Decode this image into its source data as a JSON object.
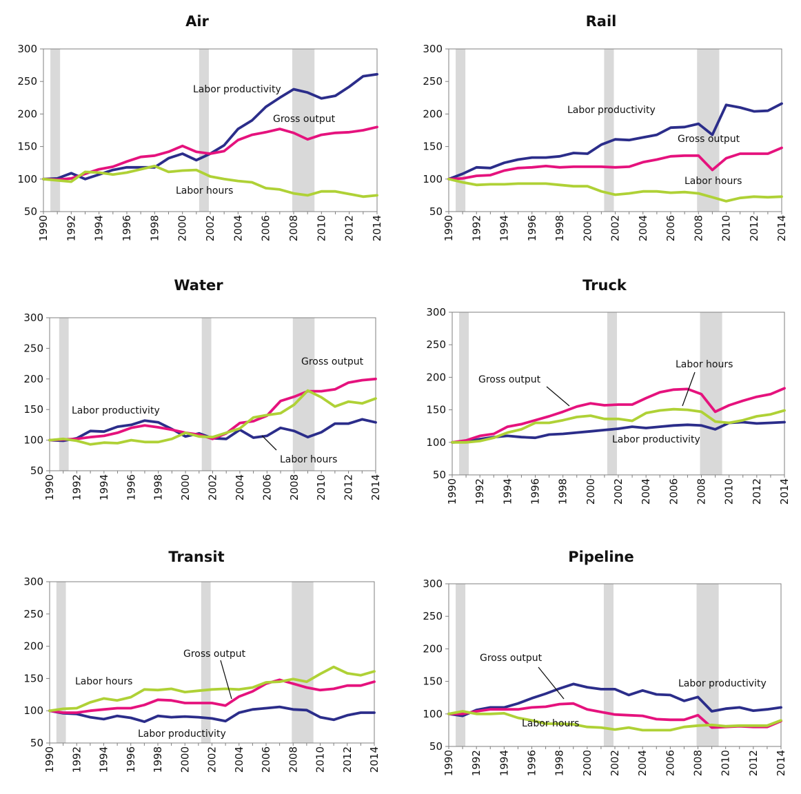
{
  "colors": {
    "Labor productivity": "#2b2d8a",
    "Gross output": "#e5127d",
    "Labor hours": "#afd136",
    "recession": "#d9d9d9",
    "axis": "#7f7f7f"
  },
  "chart_data": [
    {
      "type": "line",
      "title": "Air",
      "x": [
        1990,
        1991,
        1992,
        1993,
        1994,
        1995,
        1996,
        1997,
        1998,
        1999,
        2000,
        2001,
        2002,
        2003,
        2004,
        2005,
        2006,
        2007,
        2008,
        2009,
        2010,
        2011,
        2012,
        2013,
        2014
      ],
      "xticks": [
        "1990",
        "1992",
        "1994",
        "1996",
        "1998",
        "2000",
        "2002",
        "2004",
        "2006",
        "2008",
        "2010",
        "2012",
        "2014"
      ],
      "yticks": [
        "50",
        "100",
        "150",
        "200",
        "250",
        "300"
      ],
      "ylim": [
        50,
        300
      ],
      "shaded": [
        [
          1990.5,
          1991.2
        ],
        [
          2001.2,
          2001.9
        ],
        [
          2007.9,
          2009.5
        ]
      ],
      "series": [
        {
          "name": "Labor productivity",
          "values": [
            100,
            101,
            109,
            100,
            107,
            114,
            118,
            118,
            118,
            132,
            139,
            129,
            139,
            152,
            177,
            190,
            211,
            225,
            238,
            233,
            224,
            228,
            242,
            258,
            261
          ]
        },
        {
          "name": "Gross output",
          "values": [
            100,
            99,
            101,
            108,
            115,
            119,
            127,
            134,
            136,
            142,
            151,
            142,
            139,
            143,
            160,
            168,
            172,
            177,
            171,
            161,
            168,
            171,
            172,
            175,
            180
          ]
        },
        {
          "name": "Labor hours",
          "values": [
            100,
            98,
            96,
            111,
            110,
            107,
            110,
            115,
            120,
            111,
            113,
            114,
            104,
            100,
            97,
            95,
            86,
            84,
            78,
            75,
            81,
            81,
            77,
            73,
            75
          ]
        }
      ],
      "annotations": [
        "Labor productivity",
        "Gross output",
        "Labor hours"
      ]
    },
    {
      "type": "line",
      "title": "Rail",
      "x": [
        1990,
        1991,
        1992,
        1993,
        1994,
        1995,
        1996,
        1997,
        1998,
        1999,
        2000,
        2001,
        2002,
        2003,
        2004,
        2005,
        2006,
        2007,
        2008,
        2009,
        2010,
        2011,
        2012,
        2013,
        2014
      ],
      "xticks": [
        "1990",
        "1992",
        "1994",
        "1996",
        "1998",
        "2000",
        "2002",
        "2004",
        "2006",
        "2008",
        "2010",
        "2012",
        "2014"
      ],
      "yticks": [
        "50",
        "100",
        "150",
        "200",
        "250",
        "300"
      ],
      "ylim": [
        50,
        300
      ],
      "shaded": [
        [
          1990.5,
          1991.2
        ],
        [
          2001.2,
          2001.9
        ],
        [
          2007.9,
          2009.5
        ]
      ],
      "series": [
        {
          "name": "Labor productivity",
          "values": [
            100,
            108,
            118,
            117,
            125,
            130,
            133,
            133,
            135,
            140,
            139,
            153,
            161,
            160,
            164,
            168,
            179,
            180,
            185,
            168,
            214,
            210,
            204,
            205,
            216
          ]
        },
        {
          "name": "Gross output",
          "values": [
            100,
            101,
            105,
            106,
            113,
            117,
            118,
            120,
            118,
            119,
            119,
            119,
            118,
            119,
            126,
            130,
            135,
            136,
            136,
            114,
            132,
            139,
            139,
            139,
            148
          ]
        },
        {
          "name": "Labor hours",
          "values": [
            100,
            95,
            91,
            92,
            92,
            93,
            93,
            93,
            91,
            89,
            89,
            81,
            76,
            78,
            81,
            81,
            79,
            80,
            78,
            72,
            66,
            71,
            73,
            72,
            73
          ]
        }
      ],
      "annotations": [
        "Labor productivity",
        "Gross output",
        "Labor hours"
      ]
    },
    {
      "type": "line",
      "title": "Water",
      "x": [
        1990,
        1991,
        1992,
        1993,
        1994,
        1995,
        1996,
        1997,
        1998,
        1999,
        2000,
        2001,
        2002,
        2003,
        2004,
        2005,
        2006,
        2007,
        2008,
        2009,
        2010,
        2011,
        2012,
        2013,
        2014
      ],
      "xticks": [
        "1990",
        "1992",
        "1994",
        "1996",
        "1998",
        "2000",
        "2002",
        "2004",
        "2006",
        "2008",
        "2010",
        "2012",
        "2014"
      ],
      "yticks": [
        "50",
        "100",
        "150",
        "200",
        "250",
        "300"
      ],
      "ylim": [
        50,
        300
      ],
      "shaded": [
        [
          1990.7,
          1991.4
        ],
        [
          2001.2,
          2001.9
        ],
        [
          2007.9,
          2009.5
        ]
      ],
      "series": [
        {
          "name": "Labor productivity",
          "values": [
            100,
            99,
            103,
            115,
            114,
            122,
            125,
            132,
            129,
            118,
            106,
            111,
            103,
            102,
            117,
            104,
            107,
            120,
            115,
            105,
            113,
            127,
            127,
            134,
            129
          ]
        },
        {
          "name": "Gross output",
          "values": [
            100,
            101,
            102,
            105,
            107,
            112,
            120,
            124,
            121,
            117,
            112,
            109,
            102,
            111,
            128,
            131,
            140,
            164,
            171,
            180,
            180,
            183,
            194,
            198,
            200
          ]
        },
        {
          "name": "Labor hours",
          "values": [
            100,
            102,
            99,
            93,
            96,
            95,
            100,
            97,
            97,
            102,
            112,
            106,
            105,
            112,
            119,
            137,
            141,
            144,
            158,
            181,
            170,
            155,
            163,
            160,
            168
          ]
        }
      ],
      "annotations": [
        "Gross output",
        "Labor productivity",
        "Labor hours"
      ]
    },
    {
      "type": "line",
      "title": "Truck",
      "x": [
        1990,
        1991,
        1992,
        1993,
        1994,
        1995,
        1996,
        1997,
        1998,
        1999,
        2000,
        2001,
        2002,
        2003,
        2004,
        2005,
        2006,
        2007,
        2008,
        2009,
        2010,
        2011,
        2012,
        2013,
        2014
      ],
      "xticks": [
        "1990",
        "1992",
        "1994",
        "1996",
        "1998",
        "2000",
        "2002",
        "2004",
        "2006",
        "2008",
        "2010",
        "2012",
        "2014"
      ],
      "yticks": [
        "50",
        "100",
        "150",
        "200",
        "250",
        "300"
      ],
      "ylim": [
        50,
        300
      ],
      "shaded": [
        [
          1990.5,
          1991.2
        ],
        [
          2001.2,
          2001.9
        ],
        [
          2007.9,
          2009.5
        ]
      ],
      "series": [
        {
          "name": "Labor productivity",
          "values": [
            100,
            101,
            105,
            108,
            110,
            108,
            107,
            112,
            113,
            115,
            117,
            119,
            121,
            124,
            122,
            124,
            126,
            127,
            126,
            120,
            130,
            131,
            129,
            130,
            131
          ]
        },
        {
          "name": "Gross output",
          "values": [
            100,
            103,
            110,
            113,
            124,
            128,
            134,
            140,
            147,
            155,
            160,
            157,
            158,
            158,
            168,
            177,
            181,
            182,
            174,
            147,
            157,
            164,
            170,
            174,
            183
          ]
        },
        {
          "name": "Labor hours",
          "values": [
            100,
            100,
            102,
            107,
            115,
            120,
            130,
            130,
            134,
            139,
            141,
            136,
            136,
            133,
            145,
            149,
            151,
            150,
            147,
            132,
            130,
            134,
            140,
            143,
            149
          ]
        }
      ],
      "annotations": [
        "Gross output",
        "Labor hours",
        "Labor productivity"
      ]
    },
    {
      "type": "line",
      "title": "Transit",
      "x": [
        1990,
        1991,
        1992,
        1993,
        1994,
        1995,
        1996,
        1997,
        1998,
        1999,
        2000,
        2001,
        2002,
        2003,
        2004,
        2005,
        2006,
        2007,
        2008,
        2009,
        2010,
        2011,
        2012,
        2013,
        2014
      ],
      "xticks": [
        "1990",
        "1992",
        "1994",
        "1996",
        "1998",
        "2000",
        "2002",
        "2004",
        "2006",
        "2008",
        "2010",
        "2012",
        "2014"
      ],
      "yticks": [
        "50",
        "100",
        "150",
        "200",
        "250",
        "300"
      ],
      "ylim": [
        50,
        300
      ],
      "shaded": [
        [
          1990.5,
          1991.2
        ],
        [
          2001.2,
          2001.9
        ],
        [
          2007.9,
          2009.5
        ]
      ],
      "series": [
        {
          "name": "Labor productivity",
          "values": [
            100,
            96,
            95,
            90,
            87,
            92,
            89,
            83,
            92,
            90,
            91,
            90,
            88,
            84,
            97,
            102,
            104,
            106,
            102,
            101,
            90,
            86,
            93,
            97,
            97
          ]
        },
        {
          "name": "Gross output",
          "values": [
            100,
            97,
            97,
            100,
            102,
            104,
            104,
            109,
            117,
            116,
            112,
            112,
            112,
            108,
            122,
            130,
            142,
            148,
            142,
            136,
            132,
            134,
            139,
            139,
            145
          ]
        },
        {
          "name": "Labor hours",
          "values": [
            100,
            103,
            104,
            113,
            119,
            116,
            121,
            133,
            132,
            134,
            129,
            131,
            133,
            134,
            133,
            136,
            144,
            145,
            149,
            145,
            157,
            168,
            158,
            155,
            161
          ]
        }
      ],
      "annotations": [
        "Gross output",
        "Labor hours",
        "Labor productivity"
      ]
    },
    {
      "type": "line",
      "title": "Pipeline",
      "x": [
        1990,
        1991,
        1992,
        1993,
        1994,
        1995,
        1996,
        1997,
        1998,
        1999,
        2000,
        2001,
        2002,
        2003,
        2004,
        2005,
        2006,
        2007,
        2008,
        2009,
        2010,
        2011,
        2012,
        2013,
        2014
      ],
      "xticks": [
        "1990",
        "1992",
        "1994",
        "1996",
        "1998",
        "2000",
        "2002",
        "2004",
        "2006",
        "2008",
        "2010",
        "2012",
        "2014"
      ],
      "yticks": [
        "50",
        "100",
        "150",
        "200",
        "250",
        "300"
      ],
      "ylim": [
        50,
        300
      ],
      "shaded": [
        [
          1990.5,
          1991.2
        ],
        [
          2001.2,
          2001.9
        ],
        [
          2007.9,
          2009.5
        ]
      ],
      "series": [
        {
          "name": "Labor productivity",
          "values": [
            100,
            97,
            106,
            110,
            110,
            116,
            124,
            131,
            139,
            146,
            141,
            138,
            138,
            129,
            136,
            130,
            129,
            120,
            126,
            104,
            108,
            110,
            105,
            107,
            110
          ]
        },
        {
          "name": "Gross output",
          "values": [
            100,
            100,
            104,
            107,
            107,
            107,
            110,
            111,
            115,
            116,
            107,
            103,
            99,
            98,
            97,
            92,
            91,
            91,
            98,
            79,
            80,
            81,
            80,
            80,
            89
          ]
        },
        {
          "name": "Labor hours",
          "values": [
            100,
            104,
            100,
            100,
            101,
            94,
            90,
            85,
            85,
            84,
            80,
            79,
            76,
            79,
            75,
            75,
            75,
            80,
            82,
            83,
            81,
            82,
            82,
            82,
            90
          ]
        }
      ],
      "annotations": [
        "Gross output",
        "Labor productivity",
        "Labor hours"
      ]
    }
  ]
}
